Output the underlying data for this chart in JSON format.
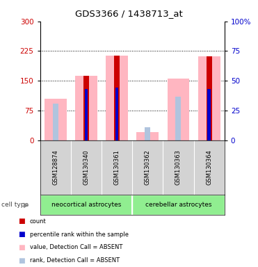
{
  "title": "GDS3366 / 1438713_at",
  "samples": [
    "GSM128874",
    "GSM130340",
    "GSM130361",
    "GSM130362",
    "GSM130363",
    "GSM130364"
  ],
  "group_defs": [
    {
      "name": "neocortical astrocytes",
      "start": 0,
      "end": 3
    },
    {
      "name": "cerebellar astrocytes",
      "start": 3,
      "end": 6
    }
  ],
  "ylim_left": [
    0,
    300
  ],
  "ylim_right": [
    0,
    100
  ],
  "yticks_left": [
    0,
    75,
    150,
    225,
    300
  ],
  "yticks_right": [
    0,
    25,
    50,
    75,
    100
  ],
  "ylabel_left_color": "#cc0000",
  "ylabel_right_color": "#0000cc",
  "value_heights": [
    105,
    163,
    213,
    20,
    155,
    212
  ],
  "count_heights": [
    0,
    163,
    213,
    0,
    0,
    212
  ],
  "rank_heights": [
    93,
    130,
    133,
    32,
    110,
    130
  ],
  "pct_heights": [
    0,
    130,
    133,
    0,
    0,
    130
  ],
  "color_value": "#ffb6c1",
  "color_count": "#cc0000",
  "color_rank": "#b0c4de",
  "color_pct": "#0000cc",
  "dotted_lines": [
    75,
    150,
    225
  ],
  "bg_sample_row": "#d3d3d3",
  "bg_group_row": "#90EE90",
  "colors_legend": [
    "#cc0000",
    "#0000cc",
    "#ffb6c1",
    "#b0c4de"
  ],
  "labels_legend": [
    "count",
    "percentile rank within the sample",
    "value, Detection Call = ABSENT",
    "rank, Detection Call = ABSENT"
  ]
}
